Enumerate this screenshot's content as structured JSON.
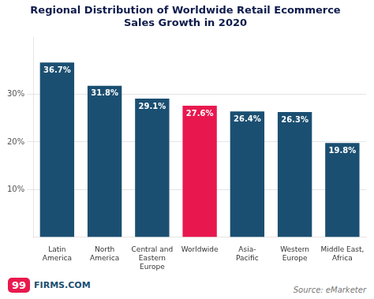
{
  "chart_data": {
    "type": "bar",
    "title": "Regional Distribution of Worldwide Retail Ecommerce\nSales Growth in 2020",
    "categories": [
      "Latin\nAmerica",
      "North\nAmerica",
      "Central and\nEastern\nEurope",
      "Worldwide",
      "Asia-\nPacific",
      "Western\nEurope",
      "Middle East,\nAfrica"
    ],
    "values": [
      36.7,
      31.8,
      29.1,
      27.6,
      26.4,
      26.3,
      19.8
    ],
    "value_labels": [
      "36.7%",
      "31.8%",
      "29.1%",
      "27.6%",
      "26.4%",
      "26.3%",
      "19.8%"
    ],
    "data_labels": true,
    "colors": [
      "#1b4f72",
      "#1b4f72",
      "#1b4f72",
      "#e8184e",
      "#1b4f72",
      "#1b4f72",
      "#1b4f72"
    ],
    "ylim": [
      0,
      42
    ],
    "yticks": [
      {
        "value": 10,
        "label": "10%"
      },
      {
        "value": 20,
        "label": "20%"
      },
      {
        "value": 30,
        "label": "30%"
      }
    ],
    "grid": true,
    "annotations": [
      "Source: eMarketer",
      "99",
      "FIRMS.COM"
    ]
  }
}
